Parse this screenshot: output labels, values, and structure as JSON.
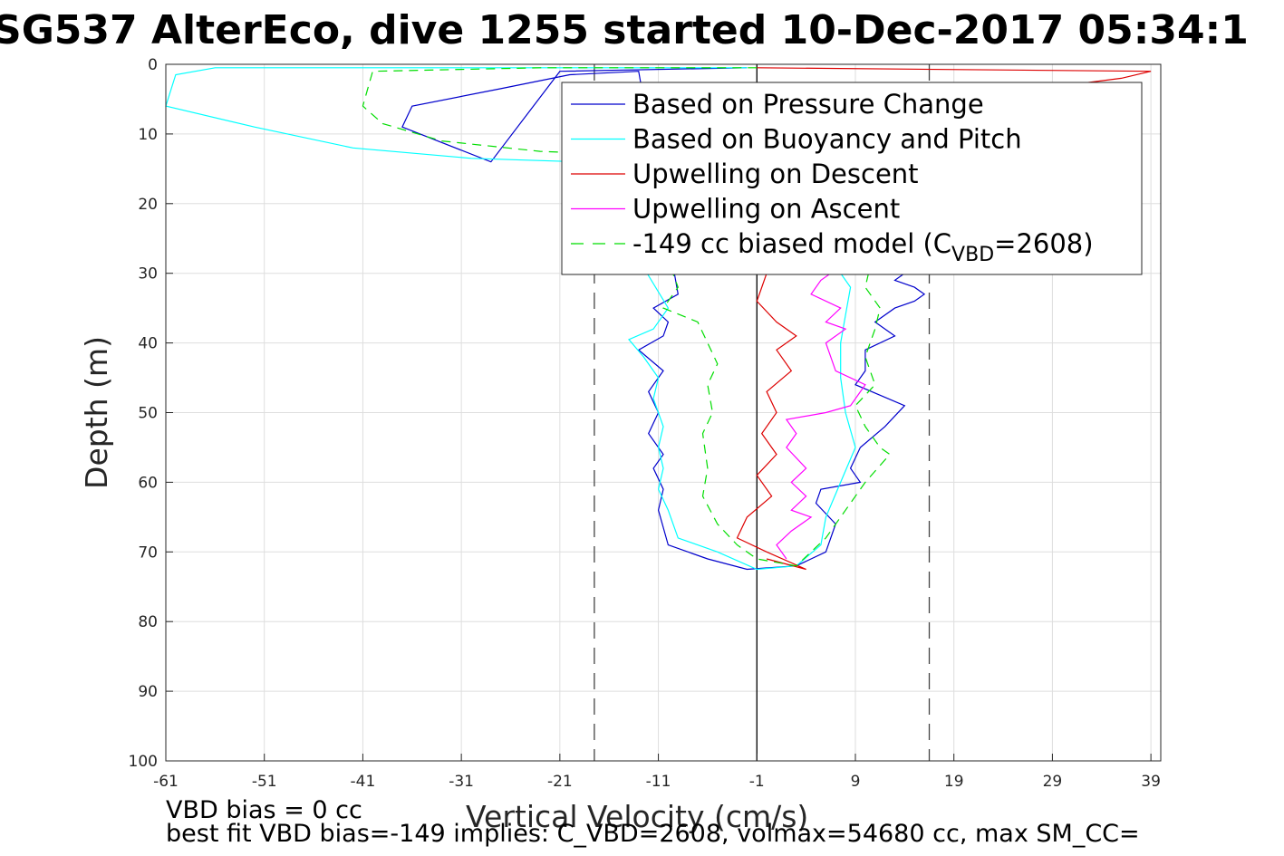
{
  "figure": {
    "title": "SG537 AlterEco, dive 1255 started 10-Dec-2017 05:34:1",
    "notes": [
      "VBD bias = 0 cc",
      "best fit VBD bias=-149 implies: C_VBD=2608, volmax=54680 cc, max SM_CC="
    ]
  },
  "chart_data": {
    "type": "line",
    "xlabel": "Vertical Velocity (cm/s)",
    "ylabel": "Depth (m)",
    "xlim": [
      -61,
      40
    ],
    "ylim": [
      0,
      100
    ],
    "y_reversed": true,
    "grid": true,
    "xticks": [
      -61,
      -51,
      -41,
      -31,
      -21,
      -11,
      -1,
      9,
      19,
      29,
      39
    ],
    "yticks": [
      0,
      10,
      20,
      30,
      40,
      50,
      60,
      70,
      80,
      90,
      100
    ],
    "ref_lines": [
      {
        "x": -1,
        "style": "solid",
        "color": "#000000"
      },
      {
        "x": -17.5,
        "style": "dashed",
        "color": "#444444"
      },
      {
        "x": 16.5,
        "style": "dashed",
        "color": "#444444"
      }
    ],
    "legend": {
      "placement": "top-right",
      "entries": [
        {
          "label": "Based on Pressure Change",
          "color": "#0000cc",
          "dash": "solid"
        },
        {
          "label": "Based on Buoyancy and Pitch",
          "color": "#00ffff",
          "dash": "solid"
        },
        {
          "label": "Upwelling on Descent",
          "color": "#dd0000",
          "dash": "solid"
        },
        {
          "label": "Upwelling on Ascent",
          "color": "#ff00ff",
          "dash": "solid"
        },
        {
          "label_parts": [
            "-149 cc biased model (C",
            "VBD",
            "=2608)"
          ],
          "color": "#00dd00",
          "dash": "dashed"
        }
      ]
    },
    "series": [
      {
        "name": "Based on Pressure Change",
        "color": "#0000cc",
        "dash": "solid",
        "x": [
          -2,
          -21,
          -28,
          -37,
          -36,
          -27,
          -20,
          -13,
          -9,
          -11.5,
          -10,
          -10.5,
          -13,
          -10.5,
          -12,
          -11,
          -12,
          -10.5,
          -11.5,
          -10.5,
          -11,
          -10,
          -6,
          -2,
          3,
          6,
          7,
          5,
          5.5,
          9.5,
          8.5,
          9.5,
          12,
          14,
          9,
          10,
          10,
          13,
          11,
          13,
          15,
          16,
          15,
          13,
          14
        ],
        "y": [
          0.5,
          1,
          14,
          9,
          6,
          3.5,
          1.5,
          1,
          33,
          35,
          37,
          39,
          41,
          44,
          47,
          50,
          53,
          56,
          58,
          61,
          64,
          69,
          71,
          72.5,
          72,
          70,
          66,
          63,
          61,
          60,
          58,
          55,
          52,
          49,
          46,
          44,
          41,
          39,
          37,
          35,
          34,
          33,
          32,
          31,
          30
        ]
      },
      {
        "name": "Based on Buoyancy and Pitch",
        "color": "#00ffff",
        "dash": "solid",
        "x": [
          -2,
          -56,
          -60,
          -61,
          -52,
          -42,
          -30,
          -19,
          -10,
          -11.5,
          -14,
          -12.5,
          -11,
          -11.5,
          -10.5,
          -11,
          -10.5,
          -11,
          -10,
          -9,
          -5,
          -1,
          3,
          5.5,
          6,
          7.5,
          9,
          8,
          7.5,
          7.5,
          8,
          8.5,
          7.5,
          9,
          6,
          7
        ],
        "y": [
          0.5,
          0.5,
          1.5,
          6,
          9,
          12,
          13.5,
          14,
          35,
          38,
          39.5,
          42,
          45,
          48,
          52,
          55,
          58,
          61,
          64,
          68,
          70,
          72.5,
          72,
          69,
          65,
          60,
          55,
          50,
          45,
          40,
          36,
          32,
          30,
          28,
          26,
          24
        ]
      },
      {
        "name": "Upwelling on Descent",
        "color": "#dd0000",
        "dash": "solid",
        "x": [
          -1,
          39,
          36,
          14,
          6,
          2,
          0,
          -1,
          1,
          3,
          1,
          2.5,
          0,
          1,
          -0.5,
          1,
          -1,
          0.5,
          -2,
          -3,
          0,
          4,
          0
        ],
        "y": [
          0.5,
          1,
          2,
          6,
          10,
          14,
          30,
          34,
          37,
          39,
          41,
          44,
          47,
          50,
          53,
          56,
          59,
          62,
          65,
          68,
          70,
          72.5,
          71
        ]
      },
      {
        "name": "Upwelling on Ascent",
        "color": "#ff00ff",
        "dash": "solid",
        "x": [
          2,
          1,
          2.5,
          4.5,
          2.5,
          4,
          2.5,
          4,
          2,
          3,
          2,
          6,
          8.5,
          10,
          7,
          6,
          8,
          6,
          7.5,
          4.5,
          5.5,
          7.5,
          8.5,
          7.5,
          8,
          6,
          5,
          3
        ],
        "y": [
          71,
          69,
          67,
          65,
          64,
          62,
          60,
          58,
          55,
          53,
          51,
          50,
          49,
          46,
          44,
          40,
          38,
          37,
          35,
          33,
          31,
          29,
          26,
          22,
          18,
          14,
          10,
          6
        ]
      },
      {
        "name": "-149 cc biased model (C_VBD=2608)",
        "color": "#00dd00",
        "dash": "dashed",
        "x": [
          -1,
          -23,
          -40,
          -41,
          -39,
          -33,
          -23,
          -14,
          -9,
          -10.5,
          -7,
          -6,
          -5,
          -6,
          -5.5,
          -6.5,
          -6,
          -6.5,
          -5,
          -3,
          -1,
          3,
          6,
          8,
          10,
          12.5,
          11.5,
          10,
          9,
          11,
          10,
          11,
          11.5,
          10,
          10.5
        ],
        "y": [
          0.5,
          0.5,
          1,
          6,
          8.5,
          11,
          12.5,
          13,
          32,
          35,
          37,
          40,
          43,
          46,
          50,
          53,
          58,
          62,
          66,
          69,
          71,
          72,
          68,
          64,
          60,
          56,
          55,
          52,
          49,
          46,
          42,
          38,
          35,
          32,
          29
        ]
      }
    ]
  }
}
